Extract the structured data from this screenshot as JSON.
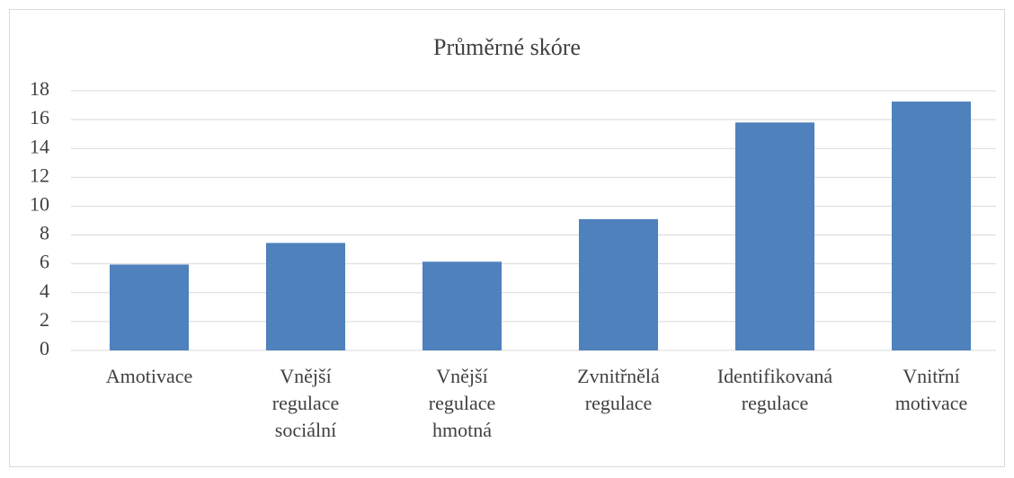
{
  "chart_data": {
    "type": "bar",
    "title": "Průměrné skóre",
    "categories": [
      "Amotivace",
      "Vnější regulace sociální",
      "Vnější regulace hmotná",
      "Zvnitřnělá regulace",
      "Identifikovaná regulace",
      "Vnitřní motivace"
    ],
    "values": [
      5.95,
      7.45,
      6.15,
      9.1,
      15.8,
      17.25
    ],
    "color": "#4f81bd",
    "ylim": [
      0,
      18
    ],
    "yticks": [
      0,
      2,
      4,
      6,
      8,
      10,
      12,
      14,
      16,
      18
    ],
    "grid": true
  }
}
